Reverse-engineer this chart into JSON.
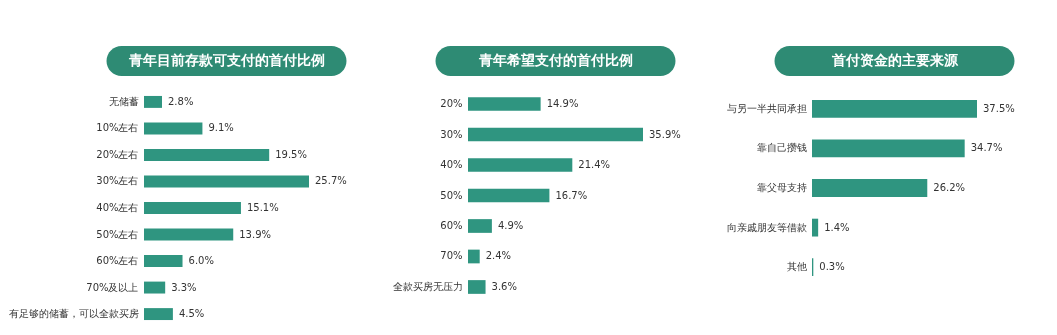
{
  "chart_data": [
    {
      "type": "bar",
      "orientation": "horizontal",
      "title": "青年目前存款可支付的首付比例",
      "categories": [
        "无储蓄",
        "10%左右",
        "20%左右",
        "30%左右",
        "40%左右",
        "50%左右",
        "60%左右",
        "70%及以上",
        "有足够的储蓄，可以全款买房"
      ],
      "values": [
        2.8,
        9.1,
        19.5,
        25.7,
        15.1,
        13.9,
        6.0,
        3.3,
        4.5
      ],
      "value_labels": [
        "2.8%",
        "9.1%",
        "19.5%",
        "25.7%",
        "15.1%",
        "13.9%",
        "6.0%",
        "3.3%",
        "4.5%"
      ],
      "color": "#2f9580"
    },
    {
      "type": "bar",
      "orientation": "horizontal",
      "title": "青年希望支付的首付比例",
      "categories": [
        "20%",
        "30%",
        "40%",
        "50%",
        "60%",
        "70%",
        "全款买房无压力"
      ],
      "values": [
        14.9,
        35.9,
        21.4,
        16.7,
        4.9,
        2.4,
        3.6
      ],
      "value_labels": [
        "14.9%",
        "35.9%",
        "21.4%",
        "16.7%",
        "4.9%",
        "2.4%",
        "3.6%"
      ],
      "color": "#2f9580"
    },
    {
      "type": "bar",
      "orientation": "horizontal",
      "title": "首付资金的主要来源",
      "categories": [
        "与另一半共同承担",
        "靠自己攒钱",
        "靠父母支持",
        "向亲戚朋友等借款",
        "其他"
      ],
      "values": [
        37.5,
        34.7,
        26.2,
        1.4,
        0.3
      ],
      "value_labels": [
        "37.5%",
        "34.7%",
        "26.2%",
        "1.4%",
        "0.3%"
      ],
      "color": "#2f9580"
    }
  ]
}
